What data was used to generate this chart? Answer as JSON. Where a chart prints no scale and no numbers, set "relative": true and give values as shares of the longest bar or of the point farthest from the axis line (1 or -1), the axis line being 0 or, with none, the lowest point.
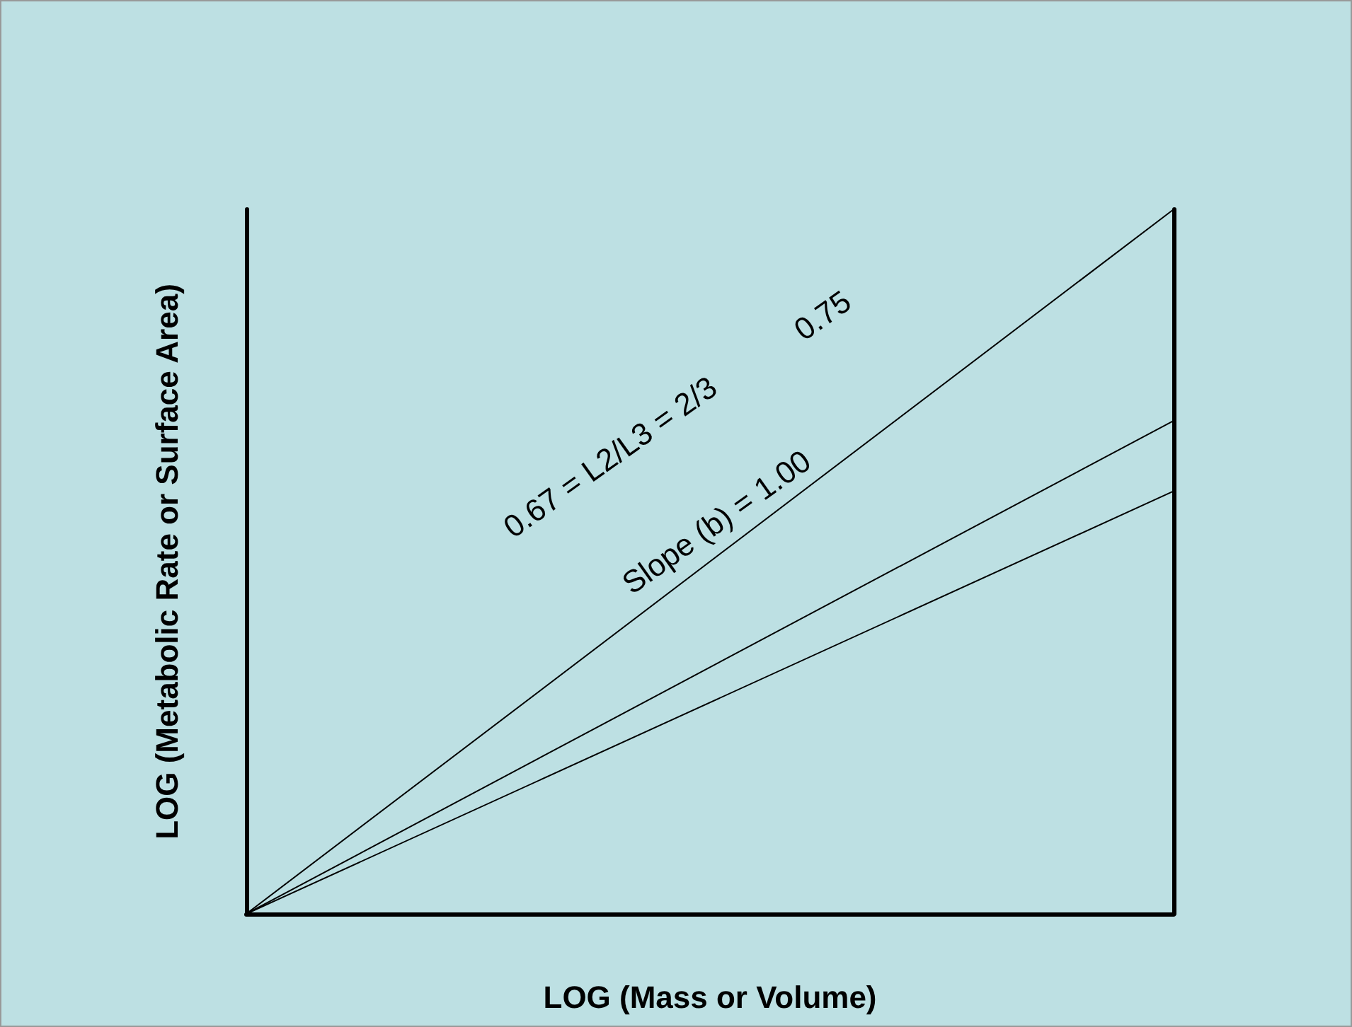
{
  "chart_data": {
    "type": "line",
    "relative": true,
    "xlabel": "LOG (Mass or Volume)",
    "ylabel": "LOG (Metabolic Rate or Surface Area)",
    "categories": [
      null,
      null
    ],
    "series": [
      {
        "color": "#000000",
        "values": [
          0,
          1
        ]
      },
      {
        "color": "#000000",
        "values": [
          0,
          0.7
        ]
      },
      {
        "color": "#000000",
        "values": [
          0,
          0.6
        ]
      }
    ],
    "annotations": [
      "0.67 = L2/L3 = 2/3",
      "0.75",
      "Slope (b) = 1.00"
    ],
    "marker": "none",
    "line_style": "solid"
  }
}
